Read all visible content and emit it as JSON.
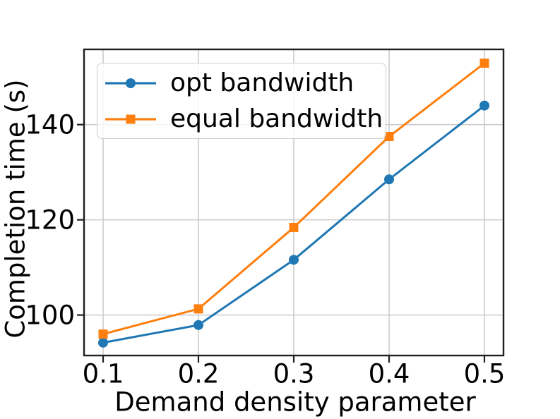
{
  "figure": {
    "background": "#ffffff"
  },
  "chart_data": {
    "type": "line",
    "x": [
      0.1,
      0.2,
      0.3,
      0.4,
      0.5
    ],
    "series": [
      {
        "name": "opt bandwidth",
        "color": "#1f77b4",
        "marker": "circle",
        "values": [
          94.2,
          97.9,
          111.6,
          128.5,
          144.0
        ]
      },
      {
        "name": "equal bandwidth",
        "color": "#ff7f0e",
        "marker": "square",
        "values": [
          96.0,
          101.3,
          118.4,
          137.5,
          152.9
        ]
      }
    ],
    "title": "",
    "xlabel": "Demand density parameter",
    "ylabel": "Completion time (s)",
    "xlim": [
      0.08,
      0.52
    ],
    "ylim": [
      91.5,
      155.8
    ],
    "xticks": {
      "values": [
        0.1,
        0.2,
        0.3,
        0.4,
        0.5
      ],
      "labels": [
        "0.1",
        "0.2",
        "0.3",
        "0.4",
        "0.5"
      ]
    },
    "yticks": {
      "values": [
        100,
        120,
        140
      ],
      "labels": [
        "100",
        "120",
        "140"
      ]
    },
    "grid": true,
    "legend": {
      "position": "upper left"
    },
    "colors": {
      "grid": "#cccccc",
      "spine": "#1f1f1f",
      "text": "#000000"
    }
  }
}
